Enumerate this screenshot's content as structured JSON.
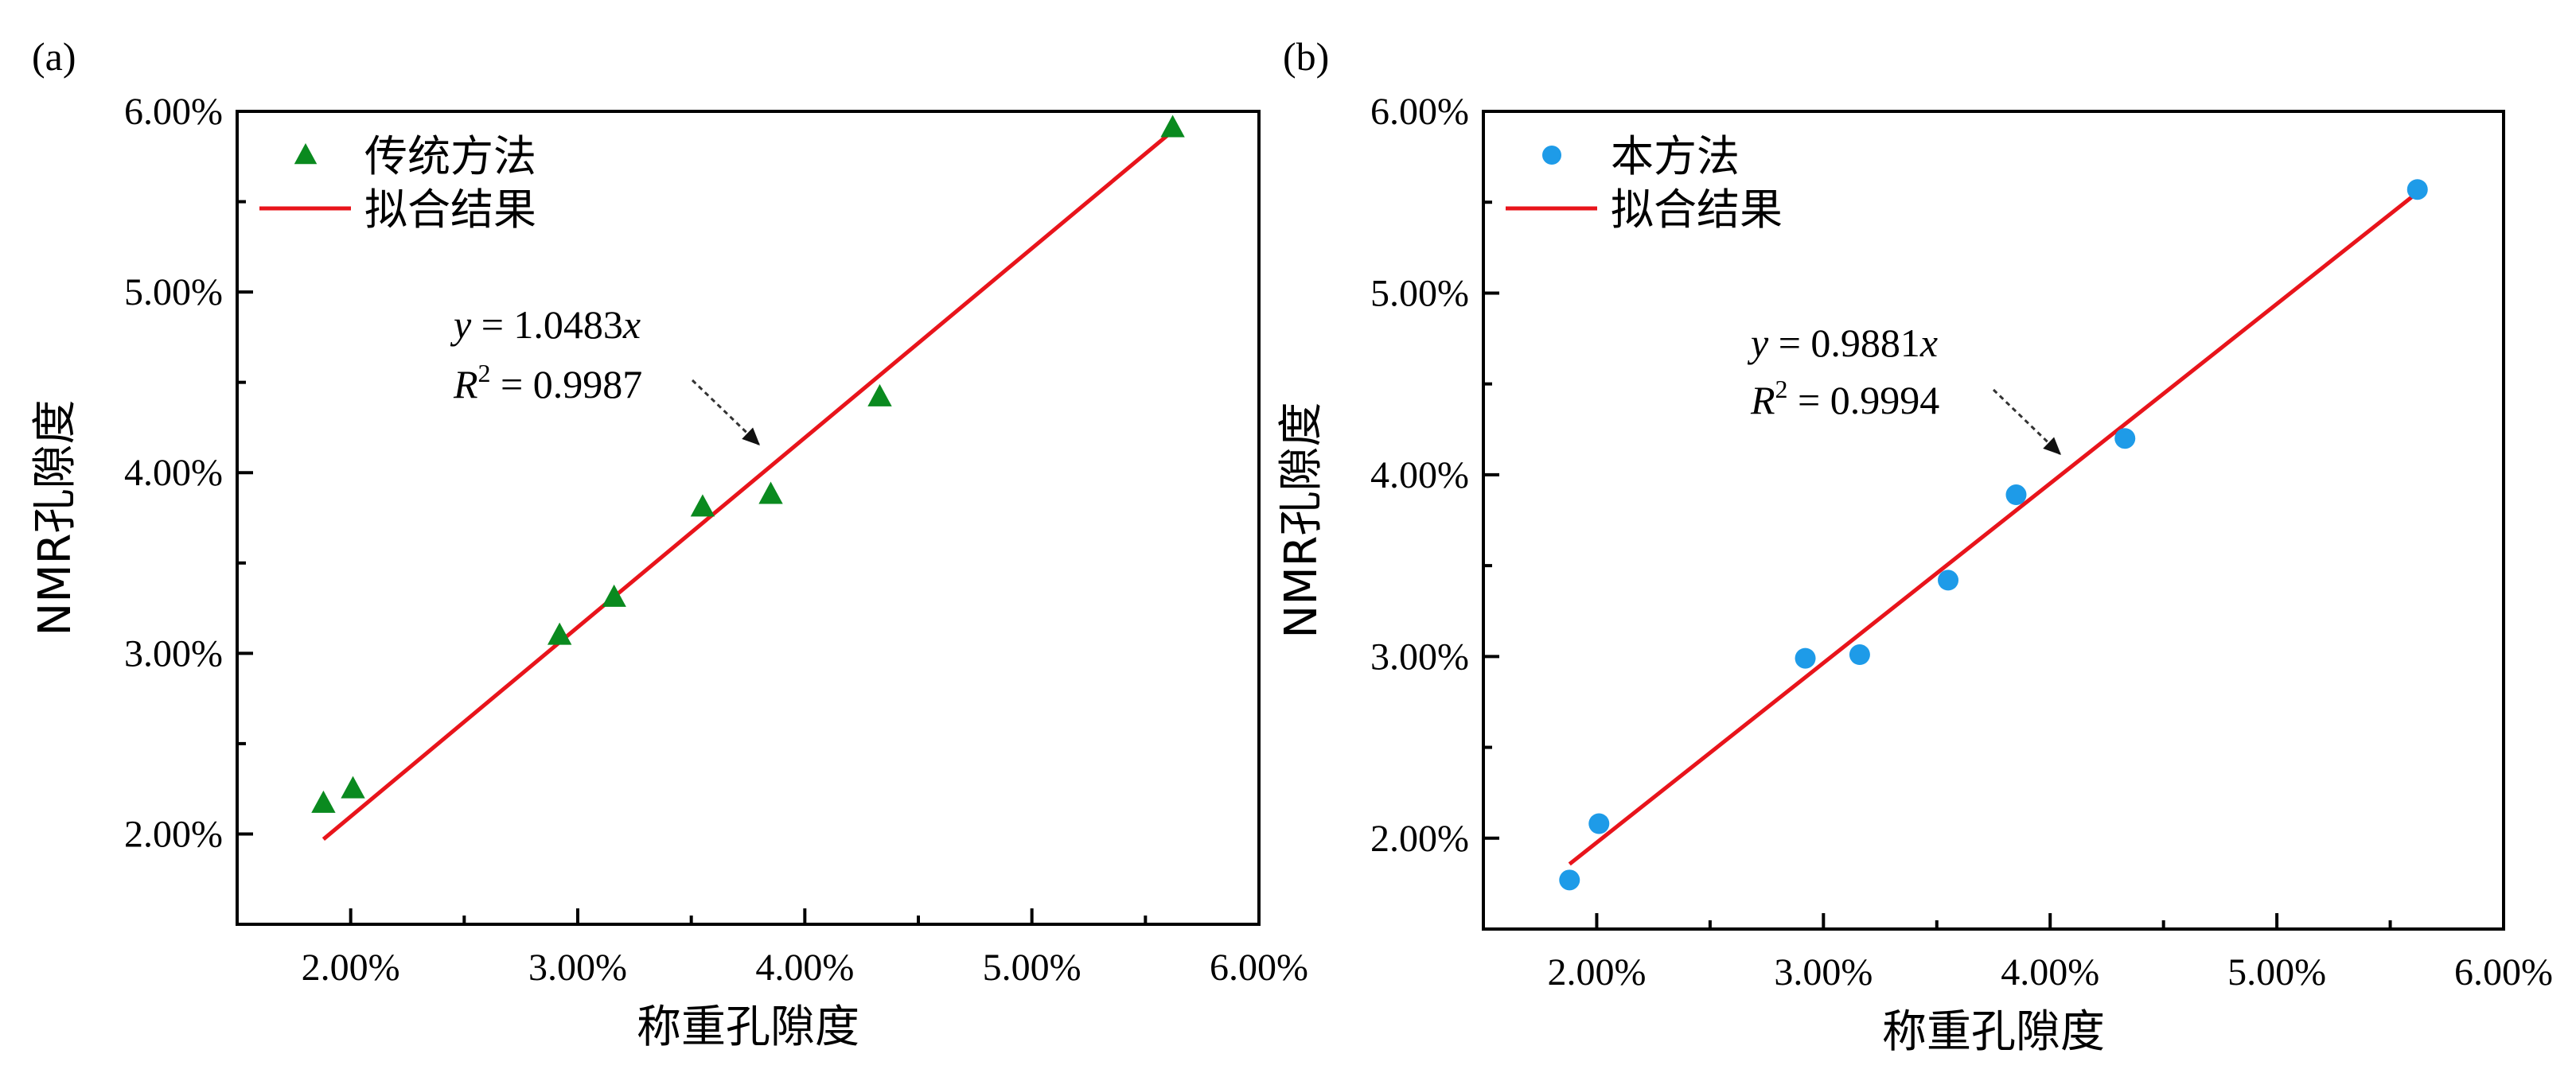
{
  "figure_labels": [
    "(a)",
    "(b)"
  ],
  "colors": {
    "fit_line": "#e8141b",
    "triangle_marker": "#0a8a1f",
    "circle_marker": "#1e9be8",
    "axis": "#000000",
    "background": "#ffffff"
  },
  "chart_data": [
    {
      "type": "scatter",
      "panel_label": "(a)",
      "xlabel": "称重孔隙度",
      "ylabel": "NMR孔隙度",
      "xlim": [
        1.5,
        6.0
      ],
      "ylim": [
        1.5,
        6.0
      ],
      "x_ticks": [
        2.0,
        3.0,
        4.0,
        5.0,
        6.0
      ],
      "x_tick_labels": [
        "2.00%",
        "3.00%",
        "4.00%",
        "5.00%",
        "6.00%"
      ],
      "y_ticks": [
        2.0,
        3.0,
        4.0,
        5.0,
        6.0
      ],
      "y_tick_labels": [
        "2.00%",
        "3.00%",
        "4.00%",
        "5.00%",
        "6.00%"
      ],
      "legend": {
        "placement": "top-left",
        "marker_label": "传统方法",
        "line_label": "拟合结果"
      },
      "marker": "triangle",
      "points": [
        {
          "x": 1.88,
          "y": 2.17
        },
        {
          "x": 2.01,
          "y": 2.25
        },
        {
          "x": 2.92,
          "y": 3.1
        },
        {
          "x": 3.16,
          "y": 3.31
        },
        {
          "x": 3.55,
          "y": 3.81
        },
        {
          "x": 3.85,
          "y": 3.88
        },
        {
          "x": 4.33,
          "y": 4.42
        },
        {
          "x": 5.62,
          "y": 5.91
        }
      ],
      "fit": {
        "slope": 1.0483,
        "x_range": [
          1.88,
          5.62
        ]
      },
      "annotation": {
        "equation_prefix": "y",
        "equation_rest": " = 1.0483",
        "equation_var": "x",
        "r2_label": "R",
        "r2_sup": "2",
        "r2_value": " = 0.9987"
      }
    },
    {
      "type": "scatter",
      "panel_label": "(b)",
      "xlabel": "称重孔隙度",
      "ylabel": "NMR孔隙度",
      "xlim": [
        1.5,
        6.0
      ],
      "ylim": [
        1.5,
        6.0
      ],
      "x_ticks": [
        2.0,
        3.0,
        4.0,
        5.0,
        6.0
      ],
      "x_tick_labels": [
        "2.00%",
        "3.00%",
        "4.00%",
        "5.00%",
        "6.00%"
      ],
      "y_ticks": [
        2.0,
        3.0,
        4.0,
        5.0,
        6.0
      ],
      "y_tick_labels": [
        "2.00%",
        "3.00%",
        "4.00%",
        "5.00%",
        "6.00%"
      ],
      "legend": {
        "placement": "top-left",
        "marker_label": "本方法",
        "line_label": "拟合结果"
      },
      "marker": "circle",
      "points": [
        {
          "x": 1.88,
          "y": 1.77
        },
        {
          "x": 2.01,
          "y": 2.08
        },
        {
          "x": 2.92,
          "y": 2.99
        },
        {
          "x": 3.16,
          "y": 3.01
        },
        {
          "x": 3.55,
          "y": 3.42
        },
        {
          "x": 3.85,
          "y": 3.89
        },
        {
          "x": 4.33,
          "y": 4.2
        },
        {
          "x": 5.62,
          "y": 5.57
        }
      ],
      "fit": {
        "slope": 0.9881,
        "x_range": [
          1.88,
          5.62
        ]
      },
      "annotation": {
        "equation_prefix": "y",
        "equation_rest": " = 0.9881",
        "equation_var": "x",
        "r2_label": "R",
        "r2_sup": "2",
        "r2_value": " = 0.9994"
      }
    }
  ]
}
